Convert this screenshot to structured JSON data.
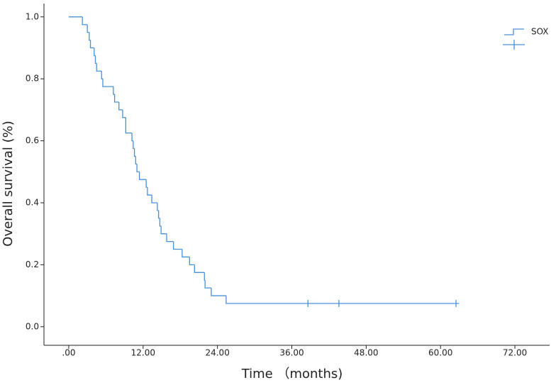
{
  "chart_data": {
    "type": "kaplan-meier",
    "y_label": "Overall survival (%)",
    "x_label": "Time （months)",
    "xlim": [
      -4,
      77.6
    ],
    "ylim": [
      -0.06,
      1.043
    ],
    "xticks": [
      {
        "value": 0,
        "label": ".00"
      },
      {
        "value": 12,
        "label": "12.00"
      },
      {
        "value": 24,
        "label": "24.00"
      },
      {
        "value": 36,
        "label": "36.00"
      },
      {
        "value": 48,
        "label": "48.00"
      },
      {
        "value": 60,
        "label": "60.00"
      },
      {
        "value": 72,
        "label": "72.00"
      }
    ],
    "yticks": [
      {
        "value": 0,
        "label": "0.0"
      },
      0.2,
      0.4,
      0.6,
      0.8,
      {
        "value": 1,
        "label": "1.0"
      }
    ],
    "series": [
      {
        "name": "SOX",
        "color": "#4a90d9",
        "x": [
          0,
          2.2,
          3.0,
          3.3,
          3.5,
          4.1,
          4.3,
          4.5,
          5.3,
          5.5,
          7.2,
          7.4,
          8.1,
          8.7,
          9.2,
          10.2,
          10.4,
          10.6,
          10.8,
          11.0,
          11.4,
          12.5,
          12.7,
          13.4,
          14.3,
          14.5,
          14.7,
          14.9,
          15.8,
          16.9,
          18.3,
          19.5,
          20.3,
          21.9,
          22.0,
          23.0,
          25.4,
          63.0
        ],
        "values": [
          1.0,
          0.975,
          0.95,
          0.925,
          0.9,
          0.875,
          0.85,
          0.825,
          0.8,
          0.775,
          0.75,
          0.725,
          0.7,
          0.675,
          0.625,
          0.6,
          0.575,
          0.55,
          0.525,
          0.5,
          0.475,
          0.45,
          0.425,
          0.4,
          0.375,
          0.35,
          0.325,
          0.3,
          0.275,
          0.25,
          0.225,
          0.2,
          0.175,
          0.15,
          0.125,
          0.1,
          0.075,
          0.075
        ],
        "censored_x": [
          38.6,
          43.6,
          62.5
        ],
        "censored_values": [
          0.075,
          0.075,
          0.075
        ]
      }
    ]
  }
}
